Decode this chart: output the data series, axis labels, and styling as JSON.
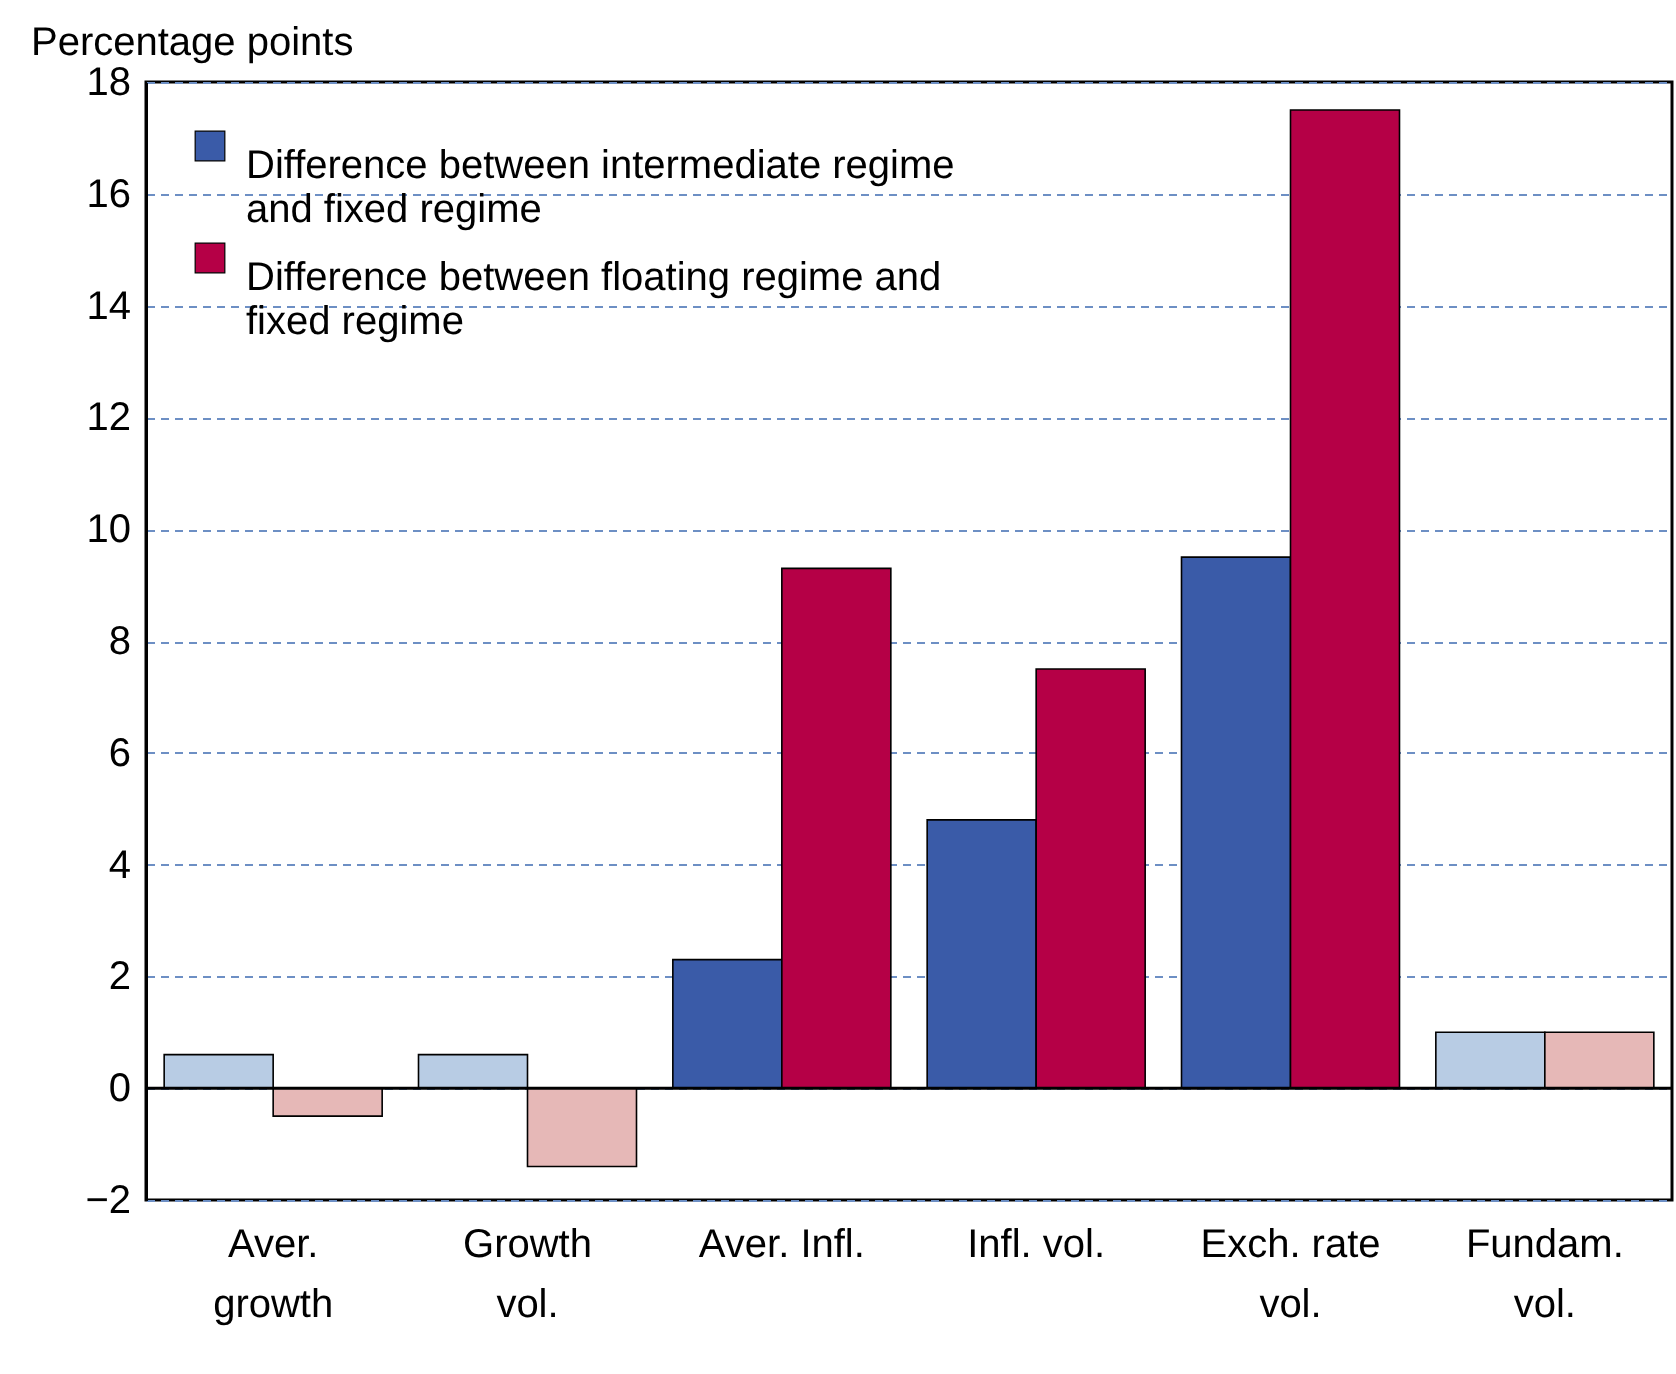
{
  "chart_data": {
    "type": "bar",
    "ylabel": "Percentage points",
    "categories": [
      "Aver. growth",
      "Growth vol.",
      "Aver. Infl.",
      "Infl. vol.",
      "Exch. rate vol.",
      "Fundam. vol."
    ],
    "series": [
      {
        "name": "Difference between intermediate regime and fixed regime",
        "color": "#3a5ba8",
        "colors": [
          "#b8cce4",
          "#b8cce4",
          "#3a5ba8",
          "#3a5ba8",
          "#3a5ba8",
          "#b8cce4"
        ],
        "values": [
          0.6,
          0.6,
          2.3,
          4.8,
          9.5,
          1.0
        ]
      },
      {
        "name": "Difference between floating regime and fixed regime",
        "color": "#b50046",
        "colors": [
          "#e6b8b7",
          "#e6b8b7",
          "#b50046",
          "#b50046",
          "#b50046",
          "#e6b8b7"
        ],
        "values": [
          -0.5,
          -1.4,
          9.3,
          7.5,
          17.5,
          1.0
        ]
      }
    ],
    "ylim": [
      -2,
      18
    ],
    "yticks": [
      -2,
      0,
      2,
      4,
      6,
      8,
      10,
      12,
      14,
      16,
      18
    ],
    "grid": "y",
    "legend": "top left",
    "ref_lines": [
      {
        "axis": "y",
        "value": 0,
        "color": "#000000"
      }
    ]
  }
}
